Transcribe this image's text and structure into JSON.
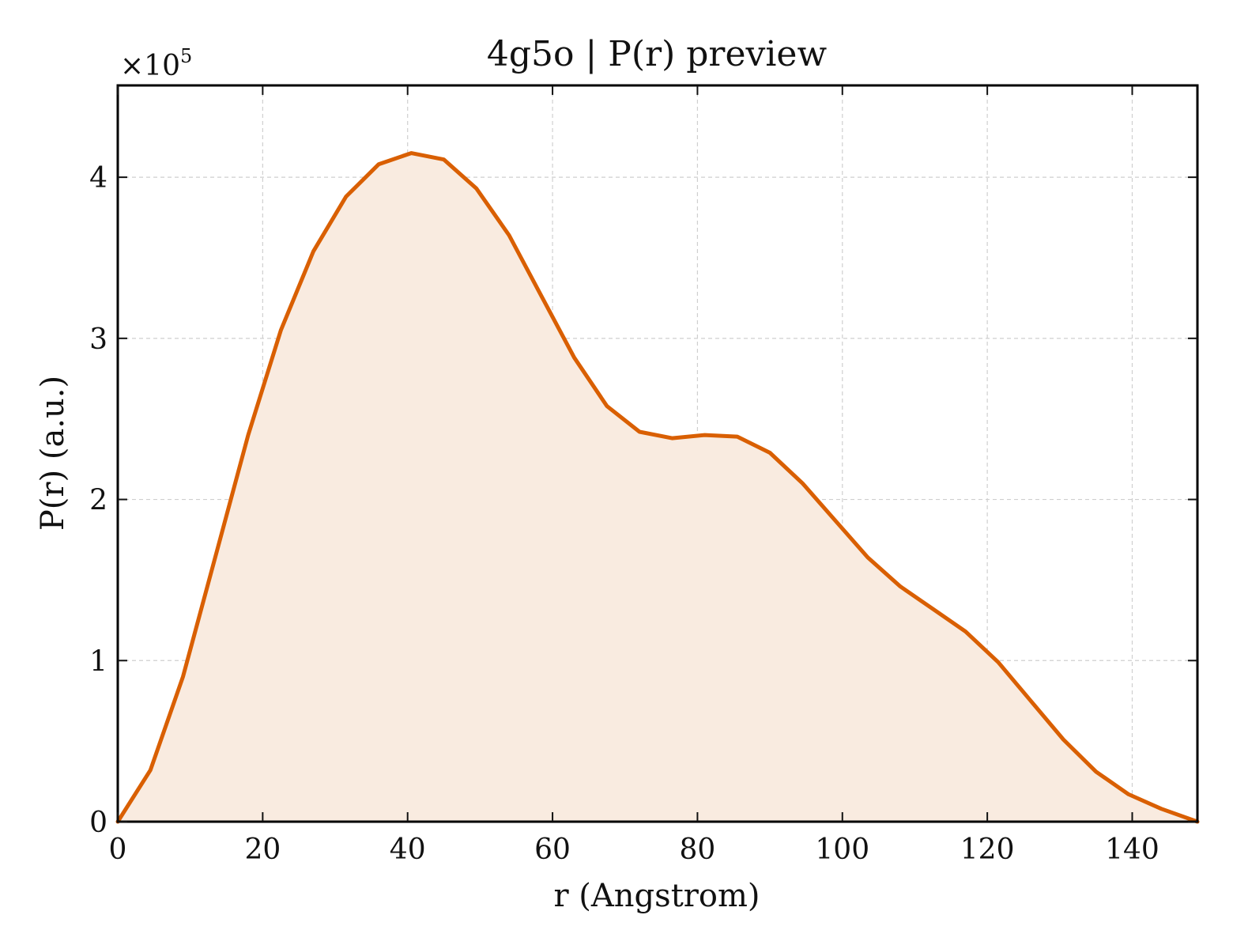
{
  "chart_data": {
    "type": "area",
    "title": "4g5o | P(r) preview",
    "xlabel": "r (Angstrom)",
    "ylabel": "P(r) (a.u.)",
    "y_multiplier": "×10",
    "y_multiplier_exponent": "5",
    "xlim": [
      0,
      149
    ],
    "ylim": [
      0,
      4.57
    ],
    "x_ticks": [
      0,
      20,
      40,
      60,
      80,
      100,
      120,
      140
    ],
    "y_ticks": [
      0,
      1,
      2,
      3,
      4
    ],
    "x_tick_labels": [
      "0",
      "20",
      "40",
      "60",
      "80",
      "100",
      "120",
      "140"
    ],
    "y_tick_labels": [
      "0",
      "1",
      "2",
      "3",
      "4"
    ],
    "grid": true,
    "colors": {
      "line": "#d95f02",
      "fill": "#f9ebe0"
    },
    "series": [
      {
        "x": [
          0,
          4.5,
          9,
          13.5,
          18,
          22.5,
          27,
          31.5,
          36,
          40.5,
          45,
          49.5,
          54,
          58.5,
          63,
          67.5,
          72,
          76.5,
          81,
          85.5,
          90,
          94.5,
          99,
          103.5,
          108,
          112.5,
          117,
          121.5,
          126,
          130.5,
          135,
          139.5,
          144,
          149
        ],
        "y": [
          0,
          0.32,
          0.9,
          1.65,
          2.4,
          3.05,
          3.54,
          3.88,
          4.08,
          4.15,
          4.11,
          3.93,
          3.64,
          3.26,
          2.88,
          2.58,
          2.42,
          2.38,
          2.4,
          2.39,
          2.29,
          2.1,
          1.87,
          1.64,
          1.46,
          1.32,
          1.18,
          0.99,
          0.75,
          0.51,
          0.31,
          0.17,
          0.08,
          0
        ]
      }
    ]
  }
}
